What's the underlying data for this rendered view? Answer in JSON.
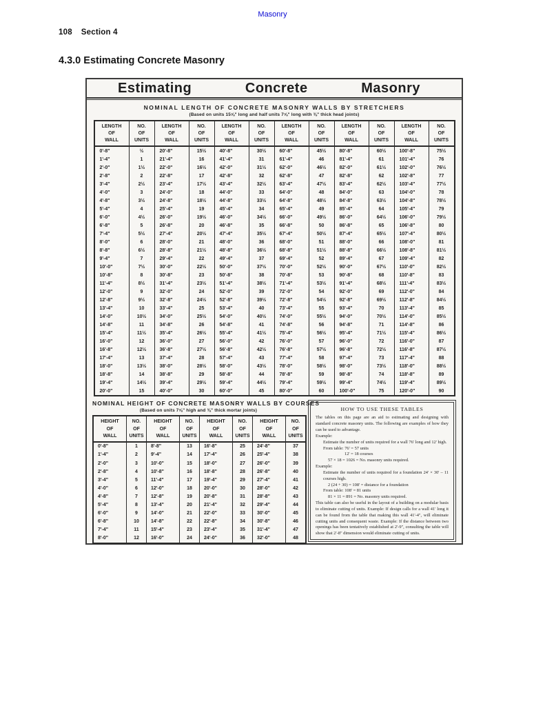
{
  "colors": {
    "link_blue": "#0a0ad2"
  },
  "page": {
    "top_link": "Masonry",
    "page_number": "108",
    "section": "Section 4",
    "heading": "4.3.0 Estimating Concrete Masonry"
  },
  "scan": {
    "title_words": [
      "Estimating",
      "Concrete",
      "Masonry"
    ],
    "stretchers": {
      "title": "NOMINAL LENGTH OF CONCRETE MASONRY WALLS BY STRETCHERS",
      "subtitle": "(Based on units 15⅝\" long and half units 7⅝\" long with ⅜\" thick head joints)",
      "col_headers": [
        "LENGTH\nOF\nWALL",
        "NO.\nOF\nUNITS",
        "LENGTH\nOF\nWALL",
        "NO.\nOF\nUNITS",
        "LENGTH\nOF\nWALL",
        "NO.\nOF\nUNITS",
        "LENGTH\nOF\nWALL",
        "NO.\nOF\nUNITS",
        "LENGTH\nOF\nWALL",
        "NO.\nOF\nUNITS",
        "LENGTH\nOF\nWALL",
        "NO.\nOF\nUNITS"
      ],
      "rows": [
        [
          "0'-8\"",
          "½",
          "20'-8\"",
          "15½",
          "40'-8\"",
          "30½",
          "60'-8\"",
          "45½",
          "80'-8\"",
          "60½",
          "100'-8\"",
          "75½"
        ],
        [
          "1'-4\"",
          "1",
          "21'-4\"",
          "16",
          "41'-4\"",
          "31",
          "61'-4\"",
          "46",
          "81'-4\"",
          "61",
          "101'-4\"",
          "76"
        ],
        [
          "2'-0\"",
          "1½",
          "22'-0\"",
          "16½",
          "42'-0\"",
          "31½",
          "62'-0\"",
          "46½",
          "82'-0\"",
          "61½",
          "102'-0\"",
          "76½"
        ],
        [
          "2'-8\"",
          "2",
          "22'-8\"",
          "17",
          "42'-8\"",
          "32",
          "62'-8\"",
          "47",
          "82'-8\"",
          "62",
          "102'-8\"",
          "77"
        ],
        [
          "3'-4\"",
          "2½",
          "23'-4\"",
          "17½",
          "43'-4\"",
          "32½",
          "63'-4\"",
          "47½",
          "83'-4\"",
          "62½",
          "103'-4\"",
          "77½"
        ],
        [
          "4'-0\"",
          "3",
          "24'-0\"",
          "18",
          "44'-0\"",
          "33",
          "64'-0\"",
          "48",
          "84'-0\"",
          "63",
          "104'-0\"",
          "78"
        ],
        [
          "4'-8\"",
          "3½",
          "24'-8\"",
          "18½",
          "44'-8\"",
          "33½",
          "64'-8\"",
          "48½",
          "84'-8\"",
          "63½",
          "104'-8\"",
          "78½"
        ],
        [
          "5'-4\"",
          "4",
          "25'-4\"",
          "19",
          "45'-4\"",
          "34",
          "65'-4\"",
          "49",
          "85'-4\"",
          "64",
          "105'-4\"",
          "79"
        ],
        [
          "6'-0\"",
          "4½",
          "26'-0\"",
          "19½",
          "46'-0\"",
          "34½",
          "66'-0\"",
          "49½",
          "86'-0\"",
          "64½",
          "106'-0\"",
          "79½"
        ],
        [
          "6'-8\"",
          "5",
          "26'-8\"",
          "20",
          "46'-8\"",
          "35",
          "66'-8\"",
          "50",
          "86'-8\"",
          "65",
          "106'-8\"",
          "80"
        ],
        [
          "7'-4\"",
          "5½",
          "27'-4\"",
          "20½",
          "47'-4\"",
          "35½",
          "67'-4\"",
          "50½",
          "87'-4\"",
          "65½",
          "107'-4\"",
          "80½"
        ],
        [
          "8'-0\"",
          "6",
          "28'-0\"",
          "21",
          "48'-0\"",
          "36",
          "68'-0\"",
          "51",
          "88'-0\"",
          "66",
          "108'-0\"",
          "81"
        ],
        [
          "8'-8\"",
          "6½",
          "28'-8\"",
          "21½",
          "48'-8\"",
          "36½",
          "68'-8\"",
          "51½",
          "88'-8\"",
          "66½",
          "108'-8\"",
          "81½"
        ],
        [
          "9'-4\"",
          "7",
          "29'-4\"",
          "22",
          "49'-4\"",
          "37",
          "69'-4\"",
          "52",
          "89'-4\"",
          "67",
          "109'-4\"",
          "82"
        ],
        [
          "10'-0\"",
          "7½",
          "30'-0\"",
          "22½",
          "50'-0\"",
          "37½",
          "70'-0\"",
          "52½",
          "90'-0\"",
          "67½",
          "110'-0\"",
          "82½"
        ],
        [
          "10'-8\"",
          "8",
          "30'-8\"",
          "23",
          "50'-8\"",
          "38",
          "70'-8\"",
          "53",
          "90'-8\"",
          "68",
          "110'-8\"",
          "83"
        ],
        [
          "11'-4\"",
          "8½",
          "31'-4\"",
          "23½",
          "51'-4\"",
          "38½",
          "71'-4\"",
          "53½",
          "91'-4\"",
          "68½",
          "111'-4\"",
          "83½"
        ],
        [
          "12'-0\"",
          "9",
          "32'-0\"",
          "24",
          "52'-0\"",
          "39",
          "72'-0\"",
          "54",
          "92'-0\"",
          "69",
          "112'-0\"",
          "84"
        ],
        [
          "12'-8\"",
          "9½",
          "32'-8\"",
          "24½",
          "52'-8\"",
          "39½",
          "72'-8\"",
          "54½",
          "92'-8\"",
          "69½",
          "112'-8\"",
          "84½"
        ],
        [
          "13'-4\"",
          "10",
          "33'-4\"",
          "25",
          "53'-4\"",
          "40",
          "73'-4\"",
          "55",
          "93'-4\"",
          "70",
          "113'-4\"",
          "85"
        ],
        [
          "14'-0\"",
          "10½",
          "34'-0\"",
          "25½",
          "54'-0\"",
          "40½",
          "74'-0\"",
          "55½",
          "94'-0\"",
          "70½",
          "114'-0\"",
          "85½"
        ],
        [
          "14'-8\"",
          "11",
          "34'-8\"",
          "26",
          "54'-8\"",
          "41",
          "74'-8\"",
          "56",
          "94'-8\"",
          "71",
          "114'-8\"",
          "86"
        ],
        [
          "15'-4\"",
          "11½",
          "35'-4\"",
          "26½",
          "55'-4\"",
          "41½",
          "75'-4\"",
          "56½",
          "95'-4\"",
          "71½",
          "115'-4\"",
          "86½"
        ],
        [
          "16'-0\"",
          "12",
          "36'-0\"",
          "27",
          "56'-0\"",
          "42",
          "76'-0\"",
          "57",
          "96'-0\"",
          "72",
          "116'-0\"",
          "87"
        ],
        [
          "16'-8\"",
          "12½",
          "36'-8\"",
          "27½",
          "56'-8\"",
          "42½",
          "76'-8\"",
          "57½",
          "96'-8\"",
          "72½",
          "116'-8\"",
          "87½"
        ],
        [
          "17'-4\"",
          "13",
          "37'-4\"",
          "28",
          "57'-4\"",
          "43",
          "77'-4\"",
          "58",
          "97'-4\"",
          "73",
          "117'-4\"",
          "88"
        ],
        [
          "18'-0\"",
          "13½",
          "38'-0\"",
          "28½",
          "58'-0\"",
          "43½",
          "78'-0\"",
          "58½",
          "98'-0\"",
          "73½",
          "118'-0\"",
          "88½"
        ],
        [
          "18'-8\"",
          "14",
          "38'-8\"",
          "29",
          "58'-8\"",
          "44",
          "78'-8\"",
          "59",
          "98'-8\"",
          "74",
          "118'-8\"",
          "89"
        ],
        [
          "19'-4\"",
          "14½",
          "39'-4\"",
          "29½",
          "59'-4\"",
          "44½",
          "79'-4\"",
          "59½",
          "99'-4\"",
          "74½",
          "119'-4\"",
          "89½"
        ],
        [
          "20'-0\"",
          "15",
          "40'-0\"",
          "30",
          "60'-0\"",
          "45",
          "80'-0\"",
          "60",
          "100'-0\"",
          "75",
          "120'-0\"",
          "90"
        ]
      ]
    },
    "courses": {
      "title": "NOMINAL HEIGHT OF CONCRETE MASONRY WALLS BY COURSES",
      "subtitle": "(Based on units 7⅝\" high and ⅜\" thick mortar joints)",
      "col_headers": [
        "HEIGHT\nOF\nWALL",
        "NO.\nOF\nUNITS",
        "HEIGHT\nOF\nWALL",
        "NO.\nOF\nUNITS",
        "HEIGHT\nOF\nWALL",
        "NO.\nOF\nUNITS",
        "HEIGHT\nOF\nWALL",
        "NO.\nOF\nUNITS"
      ],
      "rows": [
        [
          "0'-8\"",
          "1",
          "8'-8\"",
          "13",
          "16'-8\"",
          "25",
          "24'-8\"",
          "37"
        ],
        [
          "1'-4\"",
          "2",
          "9'-4\"",
          "14",
          "17'-4\"",
          "26",
          "25'-4\"",
          "38"
        ],
        [
          "2'-0\"",
          "3",
          "10'-0\"",
          "15",
          "18'-0\"",
          "27",
          "26'-0\"",
          "39"
        ],
        [
          "2'-8\"",
          "4",
          "10'-8\"",
          "16",
          "18'-8\"",
          "28",
          "26'-8\"",
          "40"
        ],
        [
          "3'-4\"",
          "5",
          "11'-4\"",
          "17",
          "19'-4\"",
          "29",
          "27'-4\"",
          "41"
        ],
        [
          "4'-0\"",
          "6",
          "12'-0\"",
          "18",
          "20'-0\"",
          "30",
          "28'-0\"",
          "42"
        ],
        [
          "4'-8\"",
          "7",
          "12'-8\"",
          "19",
          "20'-8\"",
          "31",
          "28'-8\"",
          "43"
        ],
        [
          "5'-4\"",
          "8",
          "13'-4\"",
          "20",
          "21'-4\"",
          "32",
          "29'-4\"",
          "44"
        ],
        [
          "6'-0\"",
          "9",
          "14'-0\"",
          "21",
          "22'-0\"",
          "33",
          "30'-0\"",
          "45"
        ],
        [
          "6'-8\"",
          "10",
          "14'-8\"",
          "22",
          "22'-8\"",
          "34",
          "30'-8\"",
          "46"
        ],
        [
          "7'-4\"",
          "11",
          "15'-4\"",
          "23",
          "23'-4\"",
          "35",
          "31'-4\"",
          "47"
        ],
        [
          "8'-0\"",
          "12",
          "16'-0\"",
          "24",
          "24'-0\"",
          "36",
          "32'-0\"",
          "48"
        ]
      ]
    },
    "howto": {
      "title": "HOW TO USE THESE TABLES",
      "lines": [
        {
          "c": "p",
          "t": "The tables on this page are an aid to estimating and designing with standard concrete masonry units. The following are examples of how they can be used to advantage."
        },
        {
          "c": "ex",
          "t": "Example:"
        },
        {
          "c": "in1",
          "t": "Estimate the number of units required for a wall 76' long and 12' high."
        },
        {
          "c": "in1",
          "t": "From table:  76' = 57 units"
        },
        {
          "c": "in3",
          "t": "12' = 18 courses"
        },
        {
          "c": "in2",
          "t": "57 × 18 = 1026 = No. masonry units required."
        },
        {
          "c": "ex",
          "t": "Example:"
        },
        {
          "c": "in1",
          "t": "Estimate the number of units required for a foundation 24' × 30' – 11 courses high."
        },
        {
          "c": "in2",
          "t": "2 (24 + 30) = 108' = distance for a foundation"
        },
        {
          "c": "in1",
          "t": "From table: 108' = 81 units"
        },
        {
          "c": "in2",
          "t": "81 × 11 = 891 = No. masonry units required."
        },
        {
          "c": "p",
          "t": "This table can also be useful in the layout of a building on a modular basis to eliminate cutting of units. Example: If design calls for a wall 41' long it can be found from the table that making this wall 41'-4\", will eliminate cutting units and consequent waste. Example: If the distance between two openings has been tentatively established at 2'-9\", consulting the table will show that 2'-8\" dimension would eliminate cutting of units."
        }
      ]
    }
  }
}
